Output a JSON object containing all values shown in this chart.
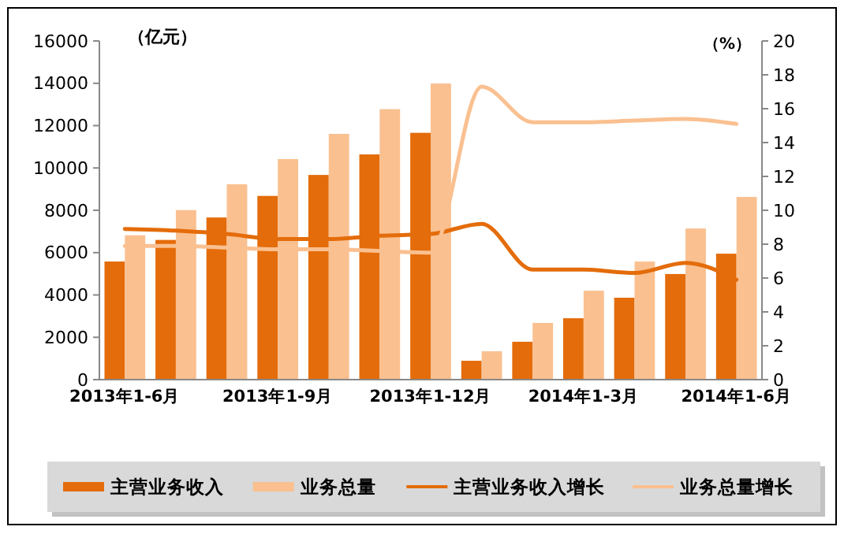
{
  "chart_data": {
    "type": "bar",
    "categories": [
      "2013年1-6月",
      null,
      null,
      "2013年1-9月",
      null,
      null,
      "2013年1-12月",
      null,
      null,
      "2014年1-3月",
      null,
      null,
      "2014年1-6月"
    ],
    "series": [
      {
        "name": "主营业务收入",
        "color": "#e46c0a",
        "values": [
          5580,
          6600,
          7660,
          8680,
          9670,
          10640,
          11660,
          890,
          1790,
          2900,
          3870,
          4990,
          5950
        ]
      },
      {
        "name": "业务总量",
        "color": "#fac090",
        "values": [
          6820,
          8010,
          9230,
          10420,
          11610,
          12780,
          13990,
          1340,
          2680,
          4200,
          5580,
          7140,
          8630
        ]
      },
      {
        "name": "主营业务收入增长",
        "type": "line",
        "axis": "y2",
        "color": "#e46c0a",
        "values": [
          8.9,
          8.8,
          8.6,
          8.3,
          8.3,
          8.5,
          8.6,
          9.2,
          6.5,
          6.5,
          6.3,
          6.9,
          5.9
        ]
      },
      {
        "name": "业务总量增长",
        "type": "line",
        "axis": "y2",
        "color": "#fac090",
        "values": [
          7.9,
          7.9,
          7.8,
          7.7,
          7.7,
          7.6,
          7.5,
          17.3,
          15.2,
          15.2,
          15.3,
          15.4,
          15.1
        ]
      }
    ],
    "ylabel": "（亿元）",
    "y2label": "（%）",
    "ylim": [
      0,
      16000
    ],
    "yticks": [
      0,
      2000,
      4000,
      6000,
      8000,
      10000,
      12000,
      14000,
      16000
    ],
    "y2lim": [
      0,
      20
    ],
    "y2ticks": [
      0,
      2,
      4,
      6,
      8,
      10,
      12,
      14,
      16,
      18,
      20
    ],
    "legend": "bottom",
    "grid": false,
    "marker": "none",
    "line_style": "solid"
  }
}
